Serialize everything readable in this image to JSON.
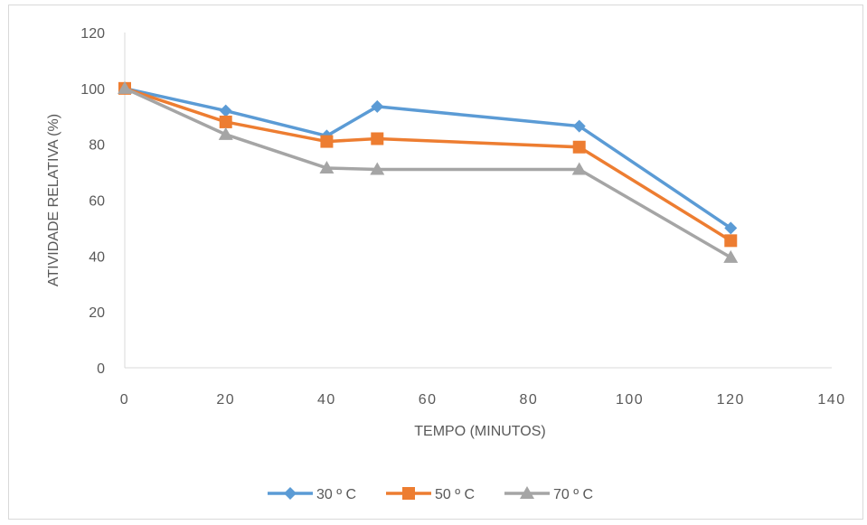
{
  "chart_data": {
    "type": "line",
    "xlabel": "TEMPO (MINUTOS)",
    "ylabel": "ATIVIDADE RELATIVA (%)",
    "xlim": [
      0,
      140
    ],
    "ylim": [
      0,
      120
    ],
    "x_ticks": [
      "0",
      "20",
      "40",
      "60",
      "80",
      "100",
      "120",
      "140"
    ],
    "y_ticks": [
      "0",
      "20",
      "40",
      "60",
      "80",
      "100",
      "120"
    ],
    "grid": false,
    "legend_position": "bottom",
    "series": [
      {
        "name": "30 º C",
        "color": "#5B9BD5",
        "marker": "diamond",
        "x": [
          0,
          20,
          40,
          50,
          90,
          120
        ],
        "y": [
          100,
          92,
          83,
          93.5,
          86.5,
          50
        ]
      },
      {
        "name": "50 º C",
        "color": "#ED7D31",
        "marker": "square",
        "x": [
          0,
          20,
          40,
          50,
          90,
          120
        ],
        "y": [
          100,
          88,
          81,
          82,
          79,
          45.5
        ]
      },
      {
        "name": "70 º C",
        "color": "#A5A5A5",
        "marker": "triangle",
        "x": [
          0,
          20,
          40,
          50,
          90,
          120
        ],
        "y": [
          100,
          83.5,
          71.5,
          71,
          71,
          39.5
        ]
      }
    ]
  }
}
